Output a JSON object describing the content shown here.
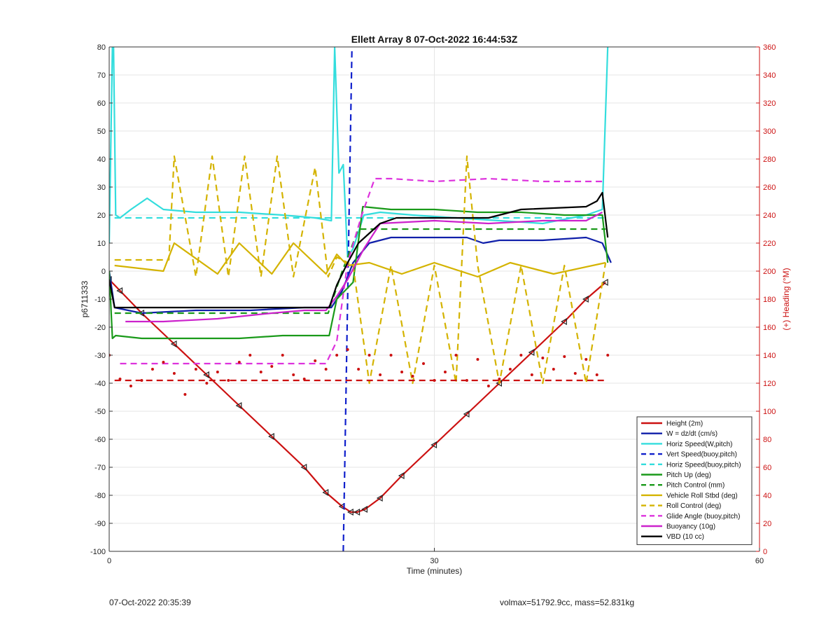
{
  "chart_data": {
    "type": "line",
    "title": "Ellett Array 8 07-Oct-2022 16:44:53Z",
    "xlabel": "Time (minutes)",
    "ylabel_left": "p6711333",
    "ylabel_right": "(+) Heading (°M)",
    "xlim": [
      0,
      60
    ],
    "ylim_left": [
      -100,
      80
    ],
    "ylim_right": [
      0,
      360
    ],
    "x_ticks": [
      "0",
      "30",
      "60"
    ],
    "y_ticks_left": [
      "80",
      "70",
      "60",
      "50",
      "40",
      "30",
      "20",
      "10",
      "0",
      "-10",
      "-20",
      "-30",
      "-40",
      "-50",
      "-60",
      "-70",
      "-80",
      "-90",
      "-100"
    ],
    "y_ticks_right": [
      "360",
      "340",
      "320",
      "300",
      "280",
      "260",
      "240",
      "220",
      "200",
      "180",
      "160",
      "140",
      "120",
      "100",
      "80",
      "60",
      "40",
      "20",
      "0"
    ],
    "grid": true,
    "legend_position": "bottom-right",
    "series": [
      {
        "name": "Height (2m)",
        "color": "#cc1111",
        "style": "solid",
        "axis": "left",
        "x": [
          0,
          1,
          3,
          6,
          9,
          12,
          15,
          18,
          20,
          21.5,
          22.3,
          22.9,
          23.6,
          25,
          27,
          30,
          33,
          36,
          39,
          42,
          44,
          45.8
        ],
        "y": [
          -3,
          -7,
          -15,
          -26,
          -37,
          -48,
          -59,
          -70,
          -79,
          -84,
          -86,
          -86,
          -85,
          -81,
          -73,
          -62,
          -51,
          -40,
          -29,
          -18,
          -10,
          -4
        ]
      },
      {
        "name": "W = dz/dt (cm/s)",
        "color": "#1020aa",
        "style": "solid",
        "axis": "left",
        "x": [
          0,
          0.5,
          3,
          8,
          13,
          18,
          20.5,
          21.5,
          22.5,
          24,
          26,
          30,
          33,
          34.5,
          36,
          40,
          44,
          45.5,
          46.3
        ],
        "y": [
          0,
          -13,
          -15,
          -14,
          -14,
          -13,
          -13,
          -7,
          3,
          10,
          12,
          12,
          12,
          10,
          11,
          11,
          12,
          10,
          3
        ]
      },
      {
        "name": "Horiz Speed(W,pitch)",
        "color": "#33dddd",
        "style": "solid",
        "axis": "left",
        "x": [
          0,
          0.3,
          0.4,
          0.6,
          1,
          2,
          3.5,
          5,
          8,
          12,
          16,
          19,
          20.5,
          20.8,
          21.2,
          21.6,
          22,
          22.5,
          23.5,
          25,
          28,
          32,
          36,
          40,
          44,
          45.5,
          46
        ],
        "y": [
          10,
          80,
          80,
          20,
          19,
          22,
          26,
          22,
          21,
          21,
          20,
          19,
          18,
          80,
          35,
          38,
          5,
          8,
          20,
          21,
          20,
          19,
          18,
          17,
          20,
          22,
          80
        ]
      },
      {
        "name": "Vert Speed(buoy,pitch)",
        "color": "#1020cc",
        "style": "dashed",
        "axis": "left",
        "x": [
          21.6,
          22.4
        ],
        "y": [
          -100,
          80
        ]
      },
      {
        "name": "Horiz Speed(buoy,pitch)",
        "color": "#33dddd",
        "style": "dashed",
        "axis": "left",
        "x": [
          0.5,
          45.8
        ],
        "y": [
          19,
          19
        ]
      },
      {
        "name": "Pitch Up (deg)",
        "color": "#1a9a1a",
        "style": "solid",
        "axis": "left",
        "x": [
          0,
          0.3,
          0.6,
          3,
          8,
          12,
          16,
          20.3,
          21,
          22.5,
          23.4,
          26,
          30,
          34,
          38,
          42,
          45.5,
          46
        ],
        "y": [
          0,
          -24,
          -23,
          -24,
          -24,
          -24,
          -23,
          -23,
          -10,
          -4,
          23,
          22,
          22,
          21,
          21,
          20,
          20,
          3
        ]
      },
      {
        "name": "Pitch Control (mm)",
        "color": "#1a9a1a",
        "style": "dashed",
        "axis": "left",
        "x": [
          0.5,
          20.2,
          21.5,
          23,
          45.8
        ],
        "y": [
          -15,
          -15,
          0,
          15,
          15
        ]
      },
      {
        "name": "Vehicle Roll Stbd (deg)",
        "color": "#d4b300",
        "style": "solid",
        "axis": "left",
        "x": [
          0.5,
          5,
          6,
          10,
          12,
          15,
          17,
          20,
          21,
          22,
          24,
          27,
          30,
          34,
          37,
          41,
          45.8
        ],
        "y": [
          2,
          0,
          10,
          -1,
          10,
          -1,
          10,
          -1,
          6,
          2,
          3,
          -1,
          3,
          -2,
          3,
          -1,
          3
        ]
      },
      {
        "name": "Roll Control (deg)",
        "color": "#d4b300",
        "style": "dashed",
        "axis": "left",
        "x": [
          0.5,
          5.5,
          6,
          8,
          9.5,
          11,
          12.5,
          14,
          15.5,
          17,
          19,
          20.2,
          21,
          22.5,
          24,
          26,
          28,
          30,
          32,
          33,
          34,
          36,
          38,
          40,
          42,
          44,
          45.8
        ],
        "y": [
          4,
          4,
          41,
          -2,
          41,
          -2,
          41,
          -2,
          41,
          -2,
          37,
          -2,
          5,
          2,
          -40,
          2,
          -40,
          2,
          -40,
          41,
          2,
          -40,
          2,
          -40,
          2,
          -40,
          3
        ]
      },
      {
        "name": "Glide Angle (buoy,pitch)",
        "color": "#dd33dd",
        "style": "dashed",
        "axis": "left",
        "x": [
          1,
          5,
          10,
          15,
          20,
          21,
          22,
          23.3,
          24.5,
          26,
          30,
          35,
          40,
          44,
          45.5
        ],
        "y": [
          -33,
          -33,
          -33,
          -33,
          -33,
          -25,
          3,
          20,
          33,
          33,
          32,
          33,
          32,
          32,
          32
        ]
      },
      {
        "name": "Buoyancy (10g)",
        "color": "#cc22cc",
        "style": "solid",
        "axis": "left",
        "x": [
          1.5,
          5,
          10,
          15,
          18,
          20,
          21,
          22,
          23.5,
          25,
          30,
          35,
          40,
          44,
          45.5
        ],
        "y": [
          -18,
          -18,
          -17,
          -15,
          -14,
          -14,
          -9,
          -3,
          8,
          17,
          18,
          17,
          18,
          18,
          21
        ]
      },
      {
        "name": "VBD (10 cc)",
        "color": "#000000",
        "style": "solid",
        "axis": "left",
        "x": [
          0,
          0.5,
          1,
          5,
          10,
          15,
          20.3,
          21,
          22,
          23,
          25,
          26.5,
          30,
          35,
          38,
          44,
          45,
          45.5,
          46
        ],
        "y": [
          -3,
          -13,
          -13,
          -13,
          -13,
          -13,
          -13,
          -5,
          3,
          10,
          17,
          19,
          19,
          19,
          22,
          23,
          25,
          28,
          12
        ]
      },
      {
        "name": "Heading (dots)",
        "color": "#cc1111",
        "style": "dotted",
        "axis": "right",
        "x": [
          0,
          1,
          2,
          3,
          4,
          5,
          6,
          7,
          8,
          9,
          10,
          11,
          12,
          13,
          14,
          15,
          16,
          17,
          18,
          19,
          20,
          21,
          22,
          23,
          24,
          25,
          26,
          27,
          28,
          29,
          30,
          31,
          32,
          33,
          34,
          35,
          36,
          37,
          38,
          39,
          40,
          41,
          42,
          43,
          44,
          45,
          46
        ],
        "y": [
          140,
          123,
          118,
          122,
          130,
          135,
          127,
          112,
          130,
          120,
          128,
          122,
          135,
          140,
          128,
          132,
          140,
          126,
          123,
          136,
          130,
          140,
          144,
          130,
          140,
          126,
          140,
          128,
          125,
          134,
          122,
          128,
          140,
          122,
          137,
          118,
          123,
          130,
          140,
          126,
          138,
          130,
          139,
          127,
          137,
          126,
          140
        ]
      },
      {
        "name": "Heading (ref)",
        "color": "#cc1111",
        "style": "dashed",
        "axis": "right",
        "x": [
          0.5,
          45.8
        ],
        "y": [
          122,
          122
        ]
      }
    ],
    "legend": [
      {
        "label": "Height (2m)",
        "color": "#cc1111",
        "style": "solid"
      },
      {
        "label": "W = dz/dt (cm/s)",
        "color": "#1020aa",
        "style": "solid"
      },
      {
        "label": "Horiz Speed(W,pitch)",
        "color": "#33dddd",
        "style": "solid"
      },
      {
        "label": "Vert Speed(buoy,pitch)",
        "color": "#1020cc",
        "style": "dashed"
      },
      {
        "label": "Horiz Speed(buoy,pitch)",
        "color": "#33dddd",
        "style": "dashed"
      },
      {
        "label": "Pitch Up (deg)",
        "color": "#1a9a1a",
        "style": "solid"
      },
      {
        "label": "Pitch Control (mm)",
        "color": "#1a9a1a",
        "style": "dashed"
      },
      {
        "label": "Vehicle Roll Stbd (deg)",
        "color": "#d4b300",
        "style": "solid"
      },
      {
        "label": "Roll Control (deg)",
        "color": "#d4b300",
        "style": "dashed"
      },
      {
        "label": "Glide Angle (buoy,pitch)",
        "color": "#dd33dd",
        "style": "dashed"
      },
      {
        "label": "Buoyancy (10g)",
        "color": "#cc22cc",
        "style": "solid"
      },
      {
        "label": "VBD (10 cc)",
        "color": "#000000",
        "style": "solid"
      }
    ]
  },
  "footer": {
    "left": "07-Oct-2022 20:35:39",
    "right": "volmax=51792.9cc, mass=52.831kg"
  }
}
